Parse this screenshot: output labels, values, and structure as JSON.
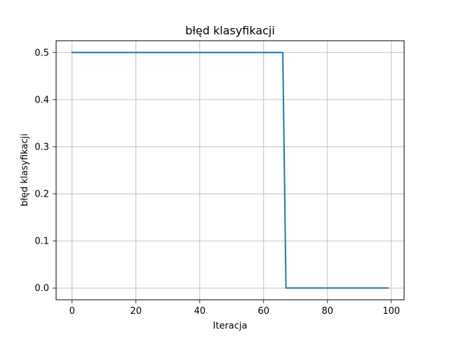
{
  "chart_data": {
    "type": "line",
    "title": "błęd klasyfikacji",
    "xlabel": "Iteracja",
    "ylabel": "błęd klasyfikacji",
    "xlim": [
      -5,
      104
    ],
    "ylim": [
      -0.025,
      0.525
    ],
    "xticks": [
      0,
      20,
      40,
      60,
      80,
      100
    ],
    "xtick_labels": [
      "0",
      "20",
      "40",
      "60",
      "80",
      "100"
    ],
    "yticks": [
      0.0,
      0.1,
      0.2,
      0.3,
      0.4,
      0.5
    ],
    "ytick_labels": [
      "0.0",
      "0.1",
      "0.2",
      "0.3",
      "0.4",
      "0.5"
    ],
    "grid": true,
    "series": [
      {
        "color": "#1f77b4",
        "x": [
          0,
          66,
          67,
          99
        ],
        "y": [
          0.5,
          0.5,
          0.0,
          0.0
        ]
      }
    ]
  }
}
